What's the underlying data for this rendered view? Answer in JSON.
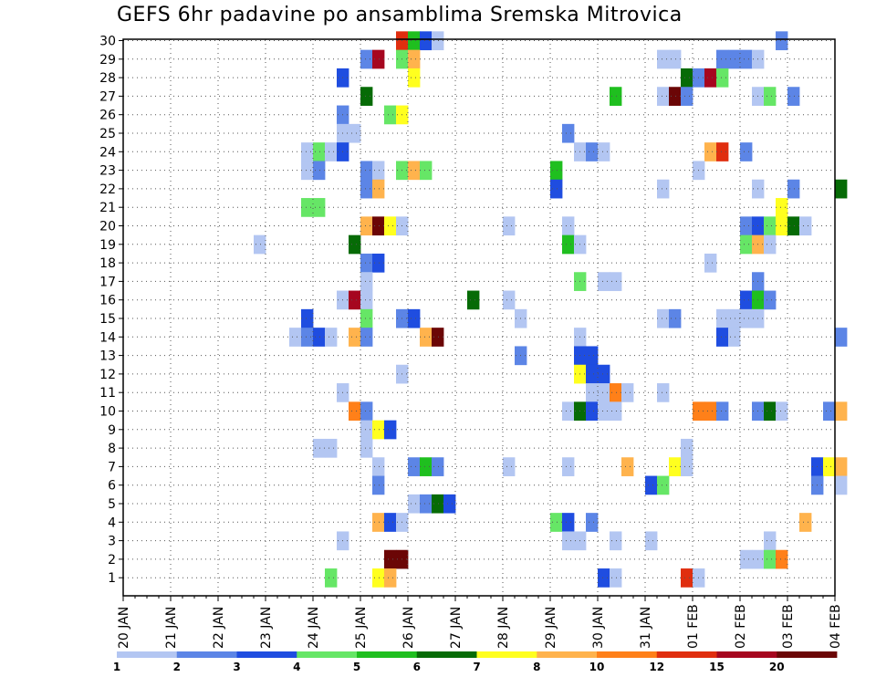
{
  "chart_data": {
    "type": "heatmap",
    "title": "GEFS 6hr padavine po ansamblima Sremska Mitrovica",
    "xlabel": "",
    "ylabel": "",
    "x_tick_labels": [
      "20 JAN",
      "21 JAN",
      "22 JAN",
      "23 JAN",
      "24 JAN",
      "25 JAN",
      "26 JAN",
      "27 JAN",
      "28 JAN",
      "29 JAN",
      "30 JAN",
      "31 JAN",
      "01 FEB",
      "02 FEB",
      "03 FEB",
      "04 FEB"
    ],
    "y_tick_labels": [
      "1",
      "2",
      "3",
      "4",
      "5",
      "6",
      "7",
      "8",
      "9",
      "10",
      "11",
      "12",
      "13",
      "14",
      "15",
      "16",
      "17",
      "18",
      "19",
      "20",
      "21",
      "22",
      "23",
      "24",
      "25",
      "26",
      "27",
      "28",
      "29",
      "30"
    ],
    "ylim": [
      0,
      30
    ],
    "grid": true,
    "value_unit": "6-hour step index (x), ensemble member (y), precipitation class (v)",
    "colorbar": {
      "tick_labels": [
        "1",
        "2",
        "3",
        "4",
        "5",
        "6",
        "7",
        "8",
        "10",
        "12",
        "15",
        "20"
      ],
      "colors": [
        "#b3c6f2",
        "#5c85e6",
        "#1f4de0",
        "#66e666",
        "#1fbf1f",
        "#066b06",
        "#ffff1f",
        "#ffb34d",
        "#ff8019",
        "#e02e0f",
        "#a6061f",
        "#6b0606"
      ]
    },
    "cells": [
      {
        "x": 23,
        "m": 30,
        "v": 9
      },
      {
        "x": 24,
        "m": 30,
        "v": 4
      },
      {
        "x": 25,
        "m": 30,
        "v": 2
      },
      {
        "x": 26,
        "m": 30,
        "v": 0
      },
      {
        "x": 55,
        "m": 30,
        "v": 1
      },
      {
        "x": 20,
        "m": 29,
        "v": 1
      },
      {
        "x": 21,
        "m": 29,
        "v": 10
      },
      {
        "x": 23,
        "m": 29,
        "v": 3
      },
      {
        "x": 24,
        "m": 29,
        "v": 7
      },
      {
        "x": 45,
        "m": 29,
        "v": 0
      },
      {
        "x": 46,
        "m": 29,
        "v": 0
      },
      {
        "x": 50,
        "m": 29,
        "v": 1
      },
      {
        "x": 51,
        "m": 29,
        "v": 1
      },
      {
        "x": 52,
        "m": 29,
        "v": 1
      },
      {
        "x": 53,
        "m": 29,
        "v": 0
      },
      {
        "x": 18,
        "m": 28,
        "v": 2
      },
      {
        "x": 24,
        "m": 28,
        "v": 6
      },
      {
        "x": 47,
        "m": 28,
        "v": 5
      },
      {
        "x": 48,
        "m": 28,
        "v": 1
      },
      {
        "x": 49,
        "m": 28,
        "v": 10
      },
      {
        "x": 50,
        "m": 28,
        "v": 3
      },
      {
        "x": 20,
        "m": 27,
        "v": 5
      },
      {
        "x": 41,
        "m": 27,
        "v": 4
      },
      {
        "x": 45,
        "m": 27,
        "v": 0
      },
      {
        "x": 46,
        "m": 27,
        "v": 11
      },
      {
        "x": 47,
        "m": 27,
        "v": 1
      },
      {
        "x": 53,
        "m": 27,
        "v": 0
      },
      {
        "x": 54,
        "m": 27,
        "v": 3
      },
      {
        "x": 56,
        "m": 27,
        "v": 1
      },
      {
        "x": 18,
        "m": 26,
        "v": 1
      },
      {
        "x": 22,
        "m": 26,
        "v": 3
      },
      {
        "x": 23,
        "m": 26,
        "v": 6
      },
      {
        "x": 18,
        "m": 25,
        "v": 0
      },
      {
        "x": 19,
        "m": 25,
        "v": 0
      },
      {
        "x": 37,
        "m": 25,
        "v": 1
      },
      {
        "x": 15,
        "m": 24,
        "v": 0
      },
      {
        "x": 16,
        "m": 24,
        "v": 3
      },
      {
        "x": 17,
        "m": 24,
        "v": 0
      },
      {
        "x": 18,
        "m": 24,
        "v": 2
      },
      {
        "x": 38,
        "m": 24,
        "v": 0
      },
      {
        "x": 39,
        "m": 24,
        "v": 1
      },
      {
        "x": 40,
        "m": 24,
        "v": 0
      },
      {
        "x": 49,
        "m": 24,
        "v": 7
      },
      {
        "x": 50,
        "m": 24,
        "v": 9
      },
      {
        "x": 52,
        "m": 24,
        "v": 1
      },
      {
        "x": 15,
        "m": 23,
        "v": 0
      },
      {
        "x": 16,
        "m": 23,
        "v": 1
      },
      {
        "x": 20,
        "m": 23,
        "v": 1
      },
      {
        "x": 21,
        "m": 23,
        "v": 0
      },
      {
        "x": 23,
        "m": 23,
        "v": 3
      },
      {
        "x": 24,
        "m": 23,
        "v": 7
      },
      {
        "x": 25,
        "m": 23,
        "v": 3
      },
      {
        "x": 36,
        "m": 23,
        "v": 4
      },
      {
        "x": 48,
        "m": 23,
        "v": 0
      },
      {
        "x": 20,
        "m": 22,
        "v": 1
      },
      {
        "x": 21,
        "m": 22,
        "v": 7
      },
      {
        "x": 36,
        "m": 22,
        "v": 2
      },
      {
        "x": 45,
        "m": 22,
        "v": 0
      },
      {
        "x": 53,
        "m": 22,
        "v": 0
      },
      {
        "x": 56,
        "m": 22,
        "v": 1
      },
      {
        "x": 60,
        "m": 22,
        "v": 5
      },
      {
        "x": 15,
        "m": 21,
        "v": 3
      },
      {
        "x": 16,
        "m": 21,
        "v": 3
      },
      {
        "x": 55,
        "m": 21,
        "v": 6
      },
      {
        "x": 20,
        "m": 20,
        "v": 7
      },
      {
        "x": 21,
        "m": 20,
        "v": 11
      },
      {
        "x": 22,
        "m": 20,
        "v": 6
      },
      {
        "x": 23,
        "m": 20,
        "v": 0
      },
      {
        "x": 32,
        "m": 20,
        "v": 0
      },
      {
        "x": 37,
        "m": 20,
        "v": 0
      },
      {
        "x": 52,
        "m": 20,
        "v": 1
      },
      {
        "x": 53,
        "m": 20,
        "v": 2
      },
      {
        "x": 54,
        "m": 20,
        "v": 3
      },
      {
        "x": 55,
        "m": 20,
        "v": 6
      },
      {
        "x": 56,
        "m": 20,
        "v": 5
      },
      {
        "x": 57,
        "m": 20,
        "v": 0
      },
      {
        "x": 11,
        "m": 19,
        "v": 0
      },
      {
        "x": 19,
        "m": 19,
        "v": 5
      },
      {
        "x": 37,
        "m": 19,
        "v": 4
      },
      {
        "x": 38,
        "m": 19,
        "v": 0
      },
      {
        "x": 52,
        "m": 19,
        "v": 3
      },
      {
        "x": 53,
        "m": 19,
        "v": 7
      },
      {
        "x": 54,
        "m": 19,
        "v": 0
      },
      {
        "x": 20,
        "m": 18,
        "v": 1
      },
      {
        "x": 21,
        "m": 18,
        "v": 2
      },
      {
        "x": 49,
        "m": 18,
        "v": 0
      },
      {
        "x": 20,
        "m": 17,
        "v": 0
      },
      {
        "x": 38,
        "m": 17,
        "v": 3
      },
      {
        "x": 40,
        "m": 17,
        "v": 0
      },
      {
        "x": 41,
        "m": 17,
        "v": 0
      },
      {
        "x": 53,
        "m": 17,
        "v": 1
      },
      {
        "x": 18,
        "m": 16,
        "v": 0
      },
      {
        "x": 19,
        "m": 16,
        "v": 10
      },
      {
        "x": 20,
        "m": 16,
        "v": 0
      },
      {
        "x": 29,
        "m": 16,
        "v": 5
      },
      {
        "x": 32,
        "m": 16,
        "v": 0
      },
      {
        "x": 52,
        "m": 16,
        "v": 2
      },
      {
        "x": 53,
        "m": 16,
        "v": 4
      },
      {
        "x": 54,
        "m": 16,
        "v": 1
      },
      {
        "x": 15,
        "m": 15,
        "v": 2
      },
      {
        "x": 20,
        "m": 15,
        "v": 3
      },
      {
        "x": 23,
        "m": 15,
        "v": 1
      },
      {
        "x": 24,
        "m": 15,
        "v": 2
      },
      {
        "x": 33,
        "m": 15,
        "v": 0
      },
      {
        "x": 45,
        "m": 15,
        "v": 0
      },
      {
        "x": 46,
        "m": 15,
        "v": 1
      },
      {
        "x": 50,
        "m": 15,
        "v": 0
      },
      {
        "x": 51,
        "m": 15,
        "v": 0
      },
      {
        "x": 52,
        "m": 15,
        "v": 0
      },
      {
        "x": 53,
        "m": 15,
        "v": 0
      },
      {
        "x": 14,
        "m": 14,
        "v": 0
      },
      {
        "x": 15,
        "m": 14,
        "v": 1
      },
      {
        "x": 16,
        "m": 14,
        "v": 2
      },
      {
        "x": 17,
        "m": 14,
        "v": 0
      },
      {
        "x": 19,
        "m": 14,
        "v": 7
      },
      {
        "x": 20,
        "m": 14,
        "v": 1
      },
      {
        "x": 25,
        "m": 14,
        "v": 7
      },
      {
        "x": 26,
        "m": 14,
        "v": 11
      },
      {
        "x": 38,
        "m": 14,
        "v": 0
      },
      {
        "x": 50,
        "m": 14,
        "v": 2
      },
      {
        "x": 51,
        "m": 14,
        "v": 0
      },
      {
        "x": 60,
        "m": 14,
        "v": 1
      },
      {
        "x": 33,
        "m": 13,
        "v": 1
      },
      {
        "x": 38,
        "m": 13,
        "v": 2
      },
      {
        "x": 39,
        "m": 13,
        "v": 2
      },
      {
        "x": 23,
        "m": 12,
        "v": 0
      },
      {
        "x": 38,
        "m": 12,
        "v": 6
      },
      {
        "x": 39,
        "m": 12,
        "v": 2
      },
      {
        "x": 40,
        "m": 12,
        "v": 2
      },
      {
        "x": 18,
        "m": 11,
        "v": 0
      },
      {
        "x": 39,
        "m": 11,
        "v": 0
      },
      {
        "x": 40,
        "m": 11,
        "v": 0
      },
      {
        "x": 41,
        "m": 11,
        "v": 8
      },
      {
        "x": 42,
        "m": 11,
        "v": 0
      },
      {
        "x": 45,
        "m": 11,
        "v": 0
      },
      {
        "x": 19,
        "m": 10,
        "v": 8
      },
      {
        "x": 20,
        "m": 10,
        "v": 1
      },
      {
        "x": 37,
        "m": 10,
        "v": 0
      },
      {
        "x": 38,
        "m": 10,
        "v": 5
      },
      {
        "x": 39,
        "m": 10,
        "v": 2
      },
      {
        "x": 40,
        "m": 10,
        "v": 0
      },
      {
        "x": 41,
        "m": 10,
        "v": 0
      },
      {
        "x": 48,
        "m": 10,
        "v": 8
      },
      {
        "x": 49,
        "m": 10,
        "v": 8
      },
      {
        "x": 50,
        "m": 10,
        "v": 1
      },
      {
        "x": 53,
        "m": 10,
        "v": 1
      },
      {
        "x": 54,
        "m": 10,
        "v": 5
      },
      {
        "x": 55,
        "m": 10,
        "v": 0
      },
      {
        "x": 59,
        "m": 10,
        "v": 1
      },
      {
        "x": 60,
        "m": 10,
        "v": 7
      },
      {
        "x": 20,
        "m": 9,
        "v": 0
      },
      {
        "x": 21,
        "m": 9,
        "v": 6
      },
      {
        "x": 22,
        "m": 9,
        "v": 2
      },
      {
        "x": 20,
        "m": 8,
        "v": 0
      },
      {
        "x": 16,
        "m": 8,
        "v": 0
      },
      {
        "x": 17,
        "m": 8,
        "v": 0
      },
      {
        "x": 47,
        "m": 8,
        "v": 0
      },
      {
        "x": 21,
        "m": 7,
        "v": 0
      },
      {
        "x": 24,
        "m": 7,
        "v": 1
      },
      {
        "x": 25,
        "m": 7,
        "v": 4
      },
      {
        "x": 26,
        "m": 7,
        "v": 1
      },
      {
        "x": 32,
        "m": 7,
        "v": 0
      },
      {
        "x": 37,
        "m": 7,
        "v": 0
      },
      {
        "x": 42,
        "m": 7,
        "v": 7
      },
      {
        "x": 46,
        "m": 7,
        "v": 6
      },
      {
        "x": 47,
        "m": 7,
        "v": 0
      },
      {
        "x": 58,
        "m": 7,
        "v": 2
      },
      {
        "x": 59,
        "m": 7,
        "v": 6
      },
      {
        "x": 60,
        "m": 7,
        "v": 7
      },
      {
        "x": 21,
        "m": 6,
        "v": 1
      },
      {
        "x": 44,
        "m": 6,
        "v": 2
      },
      {
        "x": 45,
        "m": 6,
        "v": 3
      },
      {
        "x": 58,
        "m": 6,
        "v": 1
      },
      {
        "x": 60,
        "m": 6,
        "v": 0
      },
      {
        "x": 24,
        "m": 5,
        "v": 0
      },
      {
        "x": 25,
        "m": 5,
        "v": 1
      },
      {
        "x": 26,
        "m": 5,
        "v": 5
      },
      {
        "x": 27,
        "m": 5,
        "v": 2
      },
      {
        "x": 21,
        "m": 4,
        "v": 7
      },
      {
        "x": 22,
        "m": 4,
        "v": 2
      },
      {
        "x": 23,
        "m": 4,
        "v": 0
      },
      {
        "x": 36,
        "m": 4,
        "v": 3
      },
      {
        "x": 37,
        "m": 4,
        "v": 2
      },
      {
        "x": 39,
        "m": 4,
        "v": 1
      },
      {
        "x": 57,
        "m": 4,
        "v": 7
      },
      {
        "x": 18,
        "m": 3,
        "v": 0
      },
      {
        "x": 37,
        "m": 3,
        "v": 0
      },
      {
        "x": 38,
        "m": 3,
        "v": 0
      },
      {
        "x": 41,
        "m": 3,
        "v": 0
      },
      {
        "x": 44,
        "m": 3,
        "v": 0
      },
      {
        "x": 54,
        "m": 3,
        "v": 0
      },
      {
        "x": 22,
        "m": 2,
        "v": 11
      },
      {
        "x": 23,
        "m": 2,
        "v": 11
      },
      {
        "x": 52,
        "m": 2,
        "v": 0
      },
      {
        "x": 53,
        "m": 2,
        "v": 0
      },
      {
        "x": 54,
        "m": 2,
        "v": 3
      },
      {
        "x": 55,
        "m": 2,
        "v": 8
      },
      {
        "x": 17,
        "m": 1,
        "v": 3
      },
      {
        "x": 21,
        "m": 1,
        "v": 6
      },
      {
        "x": 22,
        "m": 1,
        "v": 7
      },
      {
        "x": 40,
        "m": 1,
        "v": 2
      },
      {
        "x": 41,
        "m": 1,
        "v": 0
      },
      {
        "x": 47,
        "m": 1,
        "v": 9
      },
      {
        "x": 48,
        "m": 1,
        "v": 0
      }
    ]
  }
}
